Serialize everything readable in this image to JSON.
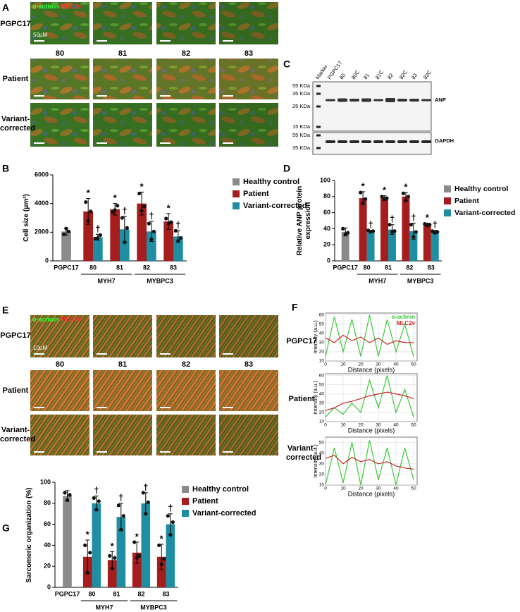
{
  "figure": {
    "panel_a": {
      "label": "A",
      "stain": {
        "green": "α-actinin",
        "separator": "/",
        "red": "MLC2v"
      },
      "scale_bar": "50μM",
      "rows": [
        "PGPC17",
        "Patient",
        "Variant-corrected"
      ],
      "columns": [
        "80",
        "81",
        "82",
        "83"
      ]
    },
    "panel_c": {
      "label": "C",
      "lanes": [
        "Marker",
        "PGPC17",
        "80",
        "80C",
        "81",
        "81C",
        "82",
        "82C",
        "83",
        "83C"
      ],
      "ladder_top": [
        "55 KDa",
        "35 KDa",
        "25 KDa",
        "15 KDa"
      ],
      "ladder_bottom": [
        "55 KDa",
        "35 KDa"
      ],
      "targets": [
        "ANP",
        "GAPDH"
      ]
    },
    "panel_e": {
      "label": "E",
      "stain": {
        "green": "α-actinin",
        "separator": "/",
        "red": "MLC2v"
      },
      "scale_bar": "10μM",
      "rows": [
        "PGPC17",
        "Patient",
        "Variant-corrected"
      ],
      "columns": [
        "80",
        "81",
        "82",
        "83"
      ]
    }
  },
  "chart_data": [
    {
      "type": "bar",
      "panel": "B",
      "ylabel": "Cell size (μm²)",
      "categories": [
        "PGPC17",
        "80",
        "81",
        "82",
        "83"
      ],
      "groups": [
        {
          "label": "MYH7",
          "span": [
            1,
            2
          ]
        },
        {
          "label": "MYBPC3",
          "span": [
            3,
            4
          ]
        }
      ],
      "series": [
        {
          "name": "Healthy control",
          "color": "#8a8a8a",
          "values": [
            2050,
            null,
            null,
            null,
            null
          ],
          "errors": [
            250,
            null,
            null,
            null,
            null
          ],
          "points": [
            [
              1850,
              2250,
              2050
            ],
            null,
            null,
            null,
            null
          ]
        },
        {
          "name": "Patient",
          "color": "#a51d1d",
          "values": [
            null,
            3450,
            3600,
            4000,
            2750
          ],
          "errors": [
            null,
            900,
            400,
            800,
            550
          ],
          "points": [
            null,
            [
              4100,
              2800,
              3450
            ],
            [
              3400,
              3550,
              3850
            ],
            [
              4700,
              3500,
              3800
            ],
            [
              2950,
              2600,
              2700
            ]
          ],
          "annotation": "*"
        },
        {
          "name": "Variant-corrected",
          "color": "#1f8ea3",
          "values": [
            null,
            1650,
            2200,
            2050,
            1700
          ],
          "errors": [
            null,
            200,
            900,
            700,
            400
          ],
          "points": [
            null,
            [
              1550,
              1600,
              1800
            ],
            [
              3000,
              1300,
              2300
            ],
            [
              2600,
              1500,
              2050
            ],
            [
              2100,
              1400,
              1600
            ]
          ],
          "annotation": "†"
        }
      ],
      "ylim": [
        0,
        6000
      ],
      "yticks": [
        0,
        2000,
        4000,
        6000
      ],
      "legend": "right"
    },
    {
      "type": "bar",
      "panel": "D",
      "ylabel": "Relative ANP protein expression",
      "categories": [
        "PGPC17",
        "80",
        "81",
        "82",
        "83"
      ],
      "groups": [
        {
          "label": "MYH7",
          "span": [
            1,
            2
          ]
        },
        {
          "label": "MYBPC3",
          "span": [
            3,
            4
          ]
        }
      ],
      "series": [
        {
          "name": "Healthy control",
          "color": "#8a8a8a",
          "values": [
            36,
            null,
            null,
            null,
            null
          ],
          "errors": [
            5,
            null,
            null,
            null,
            null
          ],
          "points": [
            [
              40,
              33,
              35
            ],
            null,
            null,
            null,
            null
          ]
        },
        {
          "name": "Patient",
          "color": "#a51d1d",
          "values": [
            null,
            78,
            78,
            80,
            45
          ],
          "errors": [
            null,
            8,
            3,
            5,
            2
          ],
          "points": [
            null,
            [
              85,
              72,
              77
            ],
            [
              80,
              77,
              78
            ],
            [
              84,
              75,
              80
            ],
            [
              46,
              44,
              45
            ]
          ],
          "annotation": "*"
        },
        {
          "name": "Variant-corrected",
          "color": "#1f8ea3",
          "values": [
            null,
            37,
            39,
            37,
            36
          ],
          "errors": [
            null,
            1,
            6,
            10,
            2
          ],
          "points": [
            null,
            [
              38,
              36,
              37
            ],
            [
              45,
              36,
              37
            ],
            [
              45,
              30,
              36
            ],
            [
              37,
              35,
              36
            ]
          ],
          "annotation": "†"
        }
      ],
      "ylim": [
        0,
        100
      ],
      "yticks": [
        0,
        20,
        40,
        60,
        80,
        100
      ],
      "legend": "right"
    },
    {
      "type": "line",
      "panel": "F",
      "row_label": "PGPC17",
      "xlabel": "Distance (pixels)",
      "ylabel": "Intensity (a.u.)",
      "x": [
        0,
        5,
        10,
        15,
        20,
        25,
        30,
        35,
        40,
        45,
        50
      ],
      "series": [
        {
          "name": "α-actinin",
          "color": "#3cc83c",
          "values": [
            15,
            58,
            20,
            55,
            15,
            60,
            15,
            55,
            20,
            50,
            15
          ]
        },
        {
          "name": "MLC2v",
          "color": "#c82828",
          "values": [
            35,
            30,
            38,
            32,
            36,
            30,
            35,
            28,
            32,
            30,
            30
          ]
        }
      ],
      "xlim": [
        0,
        52
      ],
      "xticks": [
        0,
        10,
        20,
        30,
        40,
        50
      ],
      "ylim": [
        10,
        62
      ],
      "yticks": [
        10,
        20,
        30,
        40,
        50,
        60
      ],
      "grid": true,
      "legend": "upper right"
    },
    {
      "type": "line",
      "row_label": "Patient",
      "xlabel": "Distance (pixels)",
      "ylabel": "Intensity (a.u.)",
      "x": [
        0,
        5,
        10,
        15,
        20,
        25,
        30,
        35,
        40,
        45,
        50
      ],
      "series": [
        {
          "color": "#3cc83c",
          "values": [
            15,
            25,
            18,
            30,
            20,
            55,
            25,
            60,
            20,
            45,
            15
          ]
        },
        {
          "color": "#c82828",
          "values": [
            22,
            25,
            30,
            32,
            35,
            38,
            40,
            42,
            40,
            38,
            35
          ]
        }
      ],
      "xlim": [
        0,
        52
      ],
      "xticks": [
        0,
        10,
        20,
        30,
        40,
        50
      ],
      "ylim": [
        10,
        62
      ],
      "yticks": [
        10,
        20,
        30,
        40,
        50,
        60
      ],
      "grid": true
    },
    {
      "type": "line",
      "row_label": "Variant-corrected",
      "xlabel": "Distance (pixels)",
      "ylabel": "Intensity (a.u.)",
      "x": [
        0,
        5,
        10,
        15,
        20,
        25,
        30,
        35,
        40,
        45,
        50
      ],
      "series": [
        {
          "color": "#3cc83c",
          "values": [
            10,
            45,
            12,
            50,
            10,
            52,
            15,
            45,
            10,
            45,
            15
          ]
        },
        {
          "color": "#c82828",
          "values": [
            35,
            38,
            30,
            36,
            32,
            34,
            30,
            32,
            28,
            26,
            25
          ]
        }
      ],
      "xlim": [
        0,
        52
      ],
      "xticks": [
        0,
        10,
        20,
        30,
        40,
        50
      ],
      "ylim": [
        10,
        55
      ],
      "yticks": [
        10,
        20,
        30,
        40,
        50
      ],
      "grid": true
    },
    {
      "type": "bar",
      "panel": "G",
      "ylabel": "Sarcomeric organization (%)",
      "categories": [
        "PGPC17",
        "80",
        "81",
        "82",
        "83"
      ],
      "groups": [
        {
          "label": "MYH7",
          "span": [
            1,
            2
          ]
        },
        {
          "label": "MYBPC3",
          "span": [
            3,
            4
          ]
        }
      ],
      "series": [
        {
          "name": "Healthy control",
          "color": "#8a8a8a",
          "values": [
            87,
            null,
            null,
            null,
            null
          ],
          "errors": [
            5,
            null,
            null,
            null,
            null
          ],
          "points": [
            [
              90,
              83,
              88
            ],
            null,
            null,
            null,
            null
          ]
        },
        {
          "name": "Patient",
          "color": "#a51d1d",
          "values": [
            null,
            29,
            26,
            33,
            29
          ],
          "errors": [
            null,
            16,
            8,
            10,
            12
          ],
          "points": [
            null,
            [
              40,
              14,
              33
            ],
            [
              30,
              18,
              28
            ],
            [
              43,
              28,
              30
            ],
            [
              40,
              22,
              27
            ]
          ],
          "annotation": "*"
        },
        {
          "name": "Variant-corrected",
          "color": "#1f8ea3",
          "values": [
            null,
            80,
            67,
            80,
            60
          ],
          "errors": [
            null,
            7,
            13,
            10,
            10
          ],
          "points": [
            null,
            [
              85,
              74,
              82
            ],
            [
              78,
              55,
              68
            ],
            [
              90,
              70,
              81
            ],
            [
              68,
              50,
              62
            ]
          ],
          "annotation": "†"
        }
      ],
      "ylim": [
        0,
        100
      ],
      "yticks": [
        0,
        20,
        40,
        60,
        80,
        100
      ],
      "legend": "right"
    }
  ]
}
